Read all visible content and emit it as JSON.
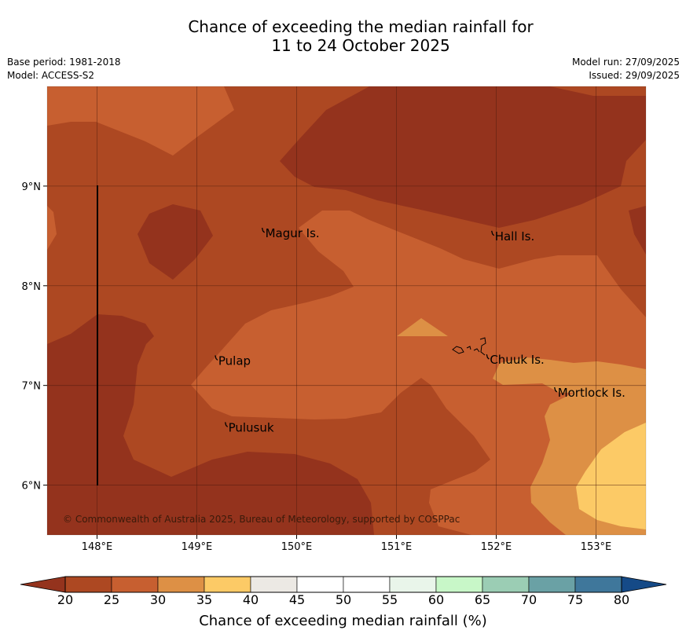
{
  "title": {
    "line1": "Chance of exceeding the median rainfall for",
    "line2": "11 to 24 October 2025"
  },
  "meta": {
    "base_period": "Base period: 1981-2018",
    "model": "Model: ACCESS-S2",
    "model_run": "Model run: 27/09/2025",
    "issued": "Issued: 29/09/2025"
  },
  "map": {
    "lon_range": [
      147.5,
      153.5
    ],
    "lat_range": [
      5.5,
      10.0
    ],
    "lon_ticks": [
      "148°E",
      "149°E",
      "150°E",
      "151°E",
      "152°E",
      "153°E"
    ],
    "lat_ticks": [
      "9°N",
      "8°N",
      "7°N",
      "6°N"
    ],
    "places": [
      {
        "name": "Magur Is.",
        "lon": 149.67,
        "lat": 8.55
      },
      {
        "name": "Hall Is.",
        "lon": 151.97,
        "lat": 8.52
      },
      {
        "name": "Pulap",
        "lon": 149.2,
        "lat": 7.27
      },
      {
        "name": "Chuuk Is.",
        "lon": 151.92,
        "lat": 7.28
      },
      {
        "name": "Mortlock Is.",
        "lon": 152.6,
        "lat": 6.95
      },
      {
        "name": "Pulusuk",
        "lon": 149.3,
        "lat": 6.6
      }
    ],
    "copyright": "© Commonwealth of Australia 2025, Bureau of Meteorology, supported by COSPPac"
  },
  "colorbar": {
    "ticks": [
      "20",
      "25",
      "30",
      "35",
      "40",
      "45",
      "50",
      "55",
      "60",
      "65",
      "70",
      "75",
      "80"
    ],
    "colors": [
      "#ad4822",
      "#c75f30",
      "#dd9045",
      "#fcca66",
      "#ece9e4",
      "#ffffff",
      "#ffffff",
      "#e9f5ea",
      "#c8f7c8",
      "#9bcdb4",
      "#6aa1a5",
      "#3f779b"
    ],
    "under_color": "#94331d",
    "over_color": "#154a87",
    "title": "Chance of exceeding median rainfall (%)"
  },
  "palette": {
    "c20": "#94331d",
    "c25": "#ad4822",
    "c30": "#c75f30",
    "c35": "#dd9045",
    "c40": "#fcca66"
  }
}
